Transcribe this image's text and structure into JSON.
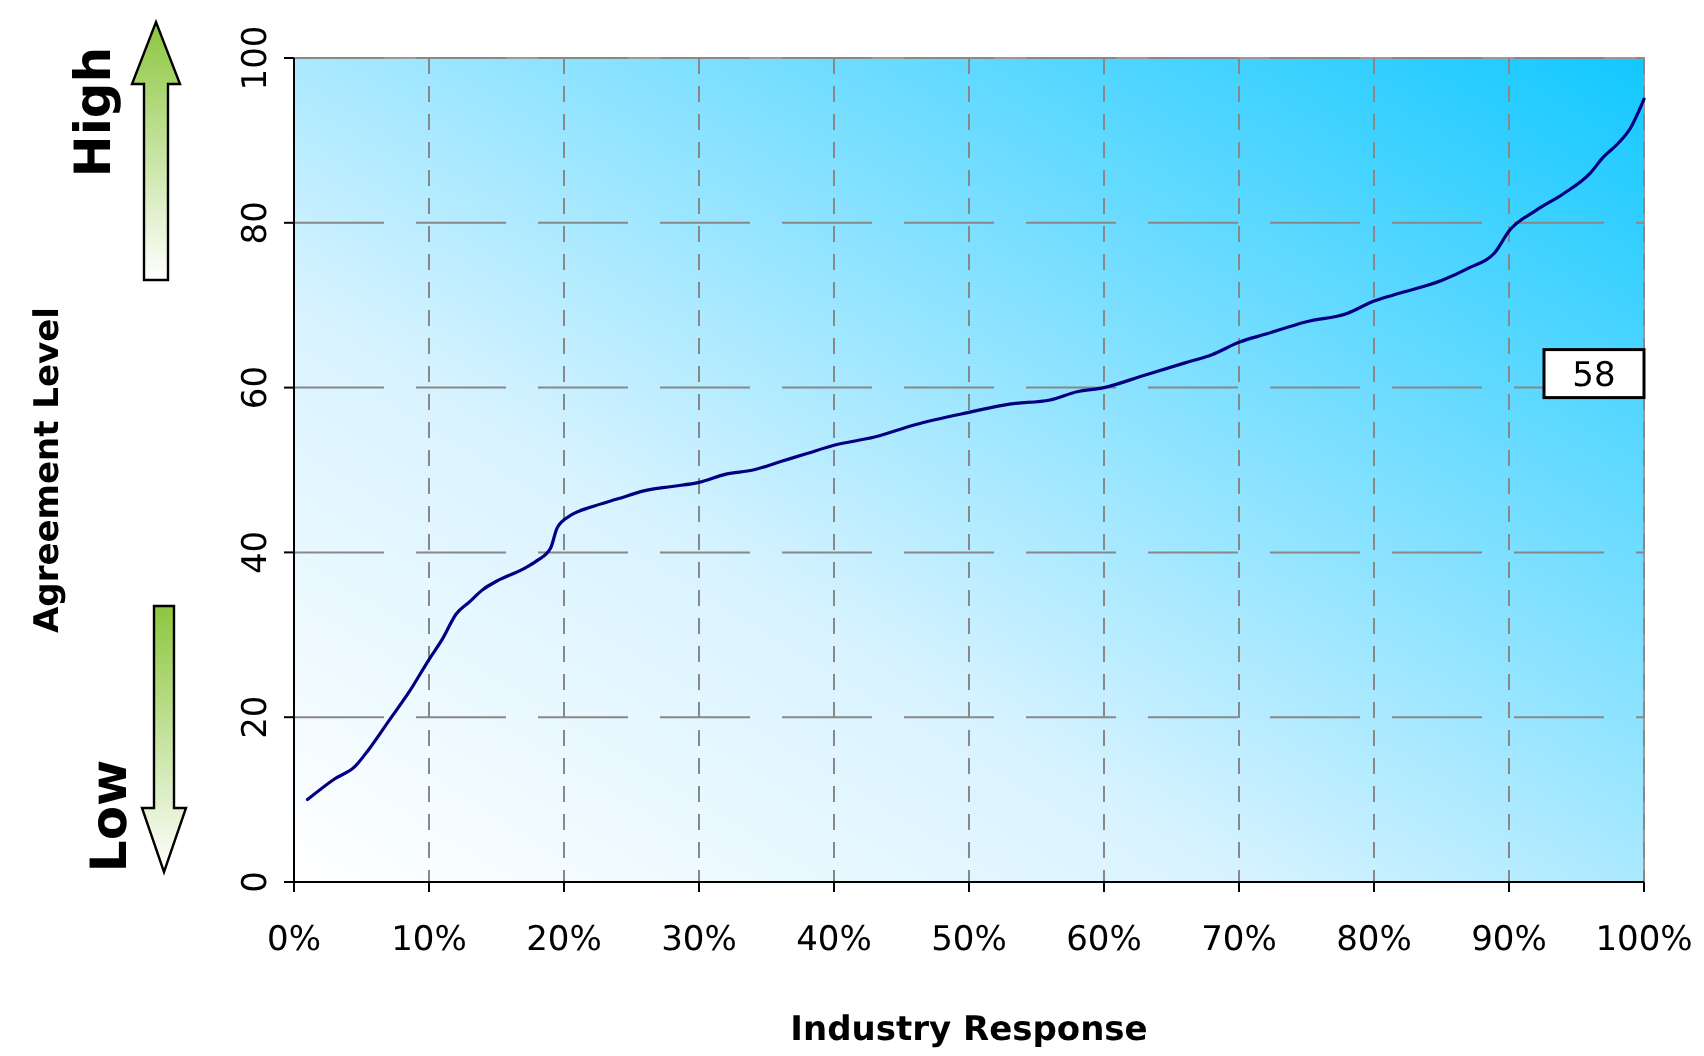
{
  "chart_data": {
    "type": "line",
    "xlabel": "Industry Response",
    "ylabel": "Agreement Level",
    "x": [
      1,
      3,
      4.5,
      5.5,
      7,
      8.5,
      10,
      11,
      12,
      13,
      14,
      15,
      17,
      18,
      19,
      19.5,
      20.5,
      22,
      24,
      26,
      28,
      30,
      32,
      34,
      36,
      38,
      40,
      43,
      46,
      50,
      53,
      56,
      58,
      60,
      63,
      66,
      68,
      70,
      72,
      75,
      78,
      80,
      82,
      85,
      87,
      89,
      90,
      92,
      94,
      96,
      97,
      98,
      99,
      100
    ],
    "series": [
      {
        "color": "#000080",
        "values": [
          10,
          12.5,
          14,
          16,
          19.5,
          23,
          27,
          29.5,
          32.5,
          34,
          35.5,
          36.5,
          38,
          39,
          40.5,
          43,
          44.5,
          45.5,
          46.5,
          47.5,
          48,
          48.5,
          49.5,
          50,
          51,
          52,
          53,
          54,
          55.5,
          57,
          58,
          58.5,
          59.5,
          60,
          61.5,
          63,
          64,
          65.5,
          66.5,
          68,
          69,
          70.5,
          71.5,
          73,
          74.5,
          76.5,
          79,
          81.5,
          83.5,
          86,
          88,
          89.5,
          91.5,
          95
        ]
      }
    ],
    "xlim": [
      0,
      100
    ],
    "ylim": [
      0,
      100
    ],
    "xticks": [
      {
        "value": 0,
        "label": "0%"
      },
      {
        "value": 10,
        "label": "10%"
      },
      {
        "value": 20,
        "label": "20%"
      },
      {
        "value": 30,
        "label": "30%"
      },
      {
        "value": 40,
        "label": "40%"
      },
      {
        "value": 50,
        "label": "50%"
      },
      {
        "value": 60,
        "label": "60%"
      },
      {
        "value": 70,
        "label": "70%"
      },
      {
        "value": 80,
        "label": "80%"
      },
      {
        "value": 90,
        "label": "90%"
      },
      {
        "value": 100,
        "label": "100%"
      }
    ],
    "yticks": [
      0,
      20,
      40,
      60,
      80,
      100
    ],
    "grid": true,
    "line_style": "solid",
    "marker": "none",
    "annotations": [
      "58",
      "High",
      "Low"
    ]
  }
}
